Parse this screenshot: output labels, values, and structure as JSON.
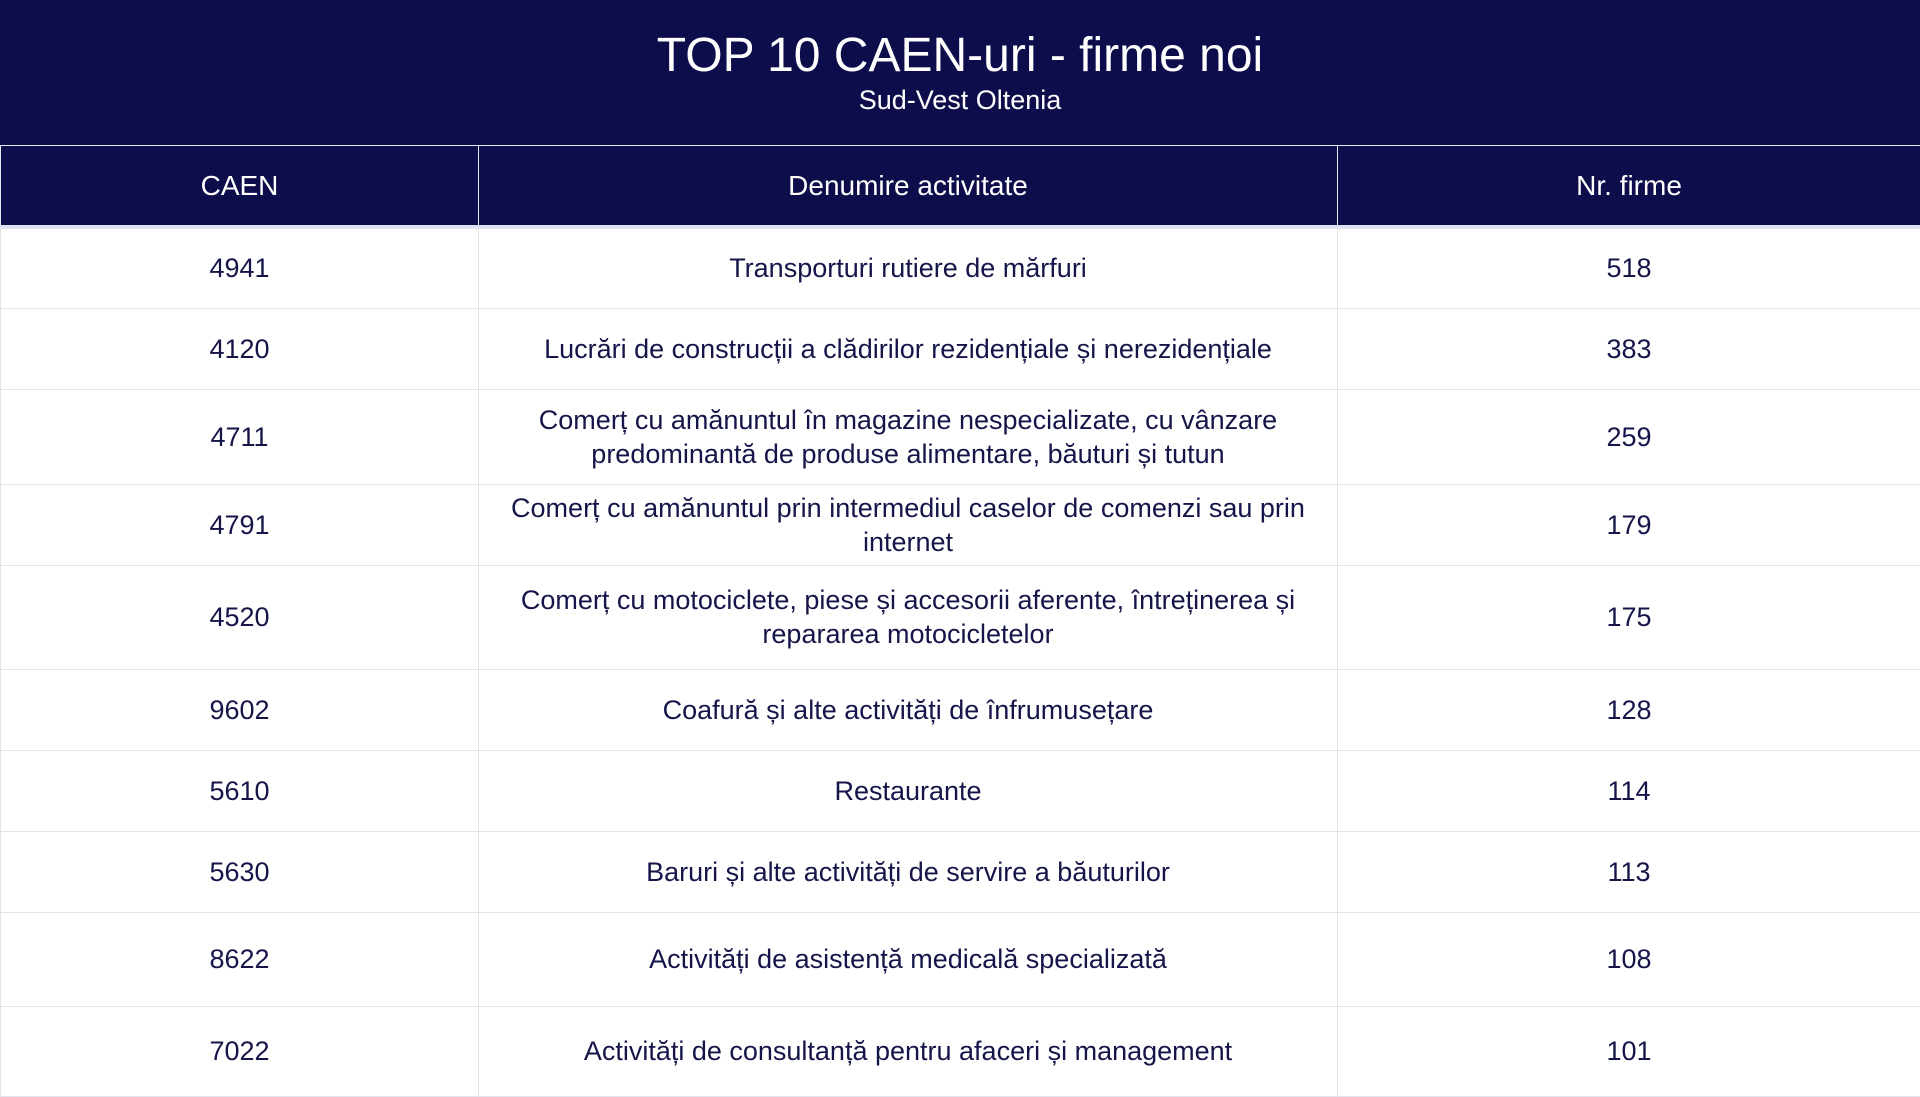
{
  "header": {
    "title": "TOP 10 CAEN-uri - firme noi",
    "subtitle": "Sud-Vest Oltenia"
  },
  "colors": {
    "header_bg": "#0e0d4b",
    "text": "#15154a",
    "border": "#dfe5ea"
  },
  "table": {
    "columns": [
      "CAEN",
      "Denumire activitate",
      "Nr. firme"
    ],
    "rows": [
      {
        "caen": "4941",
        "name": "Transporturi rutiere de mărfuri",
        "count": "518"
      },
      {
        "caen": "4120",
        "name": "Lucrări de construcții a clădirilor rezidențiale și nerezidențiale",
        "count": "383"
      },
      {
        "caen": "4711",
        "name": "Comerț cu amănuntul în magazine nespecializate, cu vânzare predominantă de produse alimentare, băuturi și tutun",
        "count": "259"
      },
      {
        "caen": "4791",
        "name": "Comerț cu amănuntul prin intermediul caselor de comenzi sau prin internet",
        "count": "179"
      },
      {
        "caen": "4520",
        "name": "Comerț cu motociclete, piese și accesorii aferente, întreținerea și repararea motocicletelor",
        "count": "175"
      },
      {
        "caen": "9602",
        "name": "Coafură și alte activități de înfrumusețare",
        "count": "128"
      },
      {
        "caen": "5610",
        "name": "Restaurante",
        "count": "114"
      },
      {
        "caen": "5630",
        "name": "Baruri și alte activități de servire a băuturilor",
        "count": "113"
      },
      {
        "caen": "8622",
        "name": "Activități de asistență medicală specializată",
        "count": "108"
      },
      {
        "caen": "7022",
        "name": "Activități de consultanță pentru afaceri și management",
        "count": "101"
      }
    ]
  }
}
